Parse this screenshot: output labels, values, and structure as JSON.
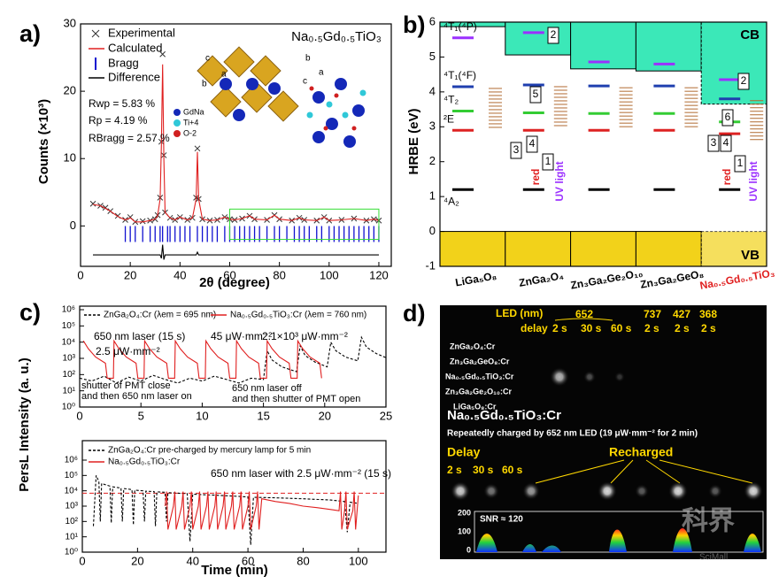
{
  "chart_data": [
    {
      "type": "line",
      "panel_label": "a)",
      "title": "Na₀.₅Gd₀.₅TiO₃",
      "x_label": "2θ (degree)",
      "y_label": "Counts (×10³)",
      "xlim": [
        0,
        125
      ],
      "ylim": [
        -6,
        30
      ],
      "xticks": [
        0,
        20,
        40,
        60,
        80,
        100,
        120
      ],
      "yticks": [
        0,
        10,
        20,
        30
      ],
      "legend": "upper left",
      "x": [
        5,
        8,
        10,
        12,
        15,
        18,
        20,
        22,
        25,
        28,
        30,
        31,
        32,
        32.5,
        33,
        33.5,
        34,
        36,
        38,
        40,
        43,
        45,
        46.5,
        47,
        47.5,
        49,
        52,
        55,
        58,
        60,
        62,
        65,
        68,
        70,
        75,
        78,
        80,
        85,
        88,
        90,
        95,
        98,
        100,
        105,
        110,
        115,
        118,
        120
      ],
      "series": [
        {
          "name": "Experimental",
          "color": "#333333",
          "mode": "markers",
          "values": [
            3.3,
            3.0,
            2.7,
            2.2,
            1.5,
            0.9,
            1.3,
            0.6,
            0.7,
            0.8,
            1.0,
            1.6,
            4.2,
            12.5,
            25.5,
            10.5,
            2,
            1.2,
            0.9,
            1.3,
            0.9,
            1.2,
            4.2,
            11.5,
            4,
            1,
            0.8,
            0.9,
            1.3,
            1.0,
            0.9,
            1.1,
            1.5,
            1.0,
            0.9,
            1.6,
            1.0,
            0.8,
            1.2,
            0.9,
            0.8,
            1.3,
            0.8,
            0.9,
            1.1,
            0.8,
            1.0,
            0.8
          ]
        },
        {
          "name": "Calculated",
          "color": "#e02020",
          "mode": "lines",
          "values": [
            3.2,
            3.0,
            2.6,
            2.2,
            1.4,
            0.9,
            1.2,
            0.6,
            0.6,
            0.8,
            1.0,
            1.5,
            4,
            12,
            24,
            10,
            2,
            1.2,
            0.9,
            1.3,
            0.9,
            1.2,
            4,
            11,
            4,
            1,
            0.8,
            0.9,
            1.3,
            1.0,
            0.9,
            1.1,
            1.5,
            1.0,
            0.9,
            1.6,
            1.0,
            0.8,
            1.2,
            0.9,
            0.8,
            1.3,
            0.8,
            0.9,
            1.1,
            0.8,
            1.0,
            0.8
          ]
        },
        {
          "name": "Bragg",
          "color": "#1010d0",
          "mode": "ticks",
          "x": [
            18,
            20,
            22,
            25,
            28,
            30,
            32,
            33,
            35,
            36,
            38,
            40,
            42,
            44,
            47,
            49,
            51,
            53,
            55,
            58,
            60,
            62,
            64,
            66,
            68,
            70,
            72,
            75,
            78,
            80,
            83,
            86,
            88,
            90,
            92,
            95,
            97,
            100,
            102,
            104,
            106,
            108,
            110,
            112,
            114,
            116,
            118,
            120
          ],
          "values": [
            -1.2,
            -1.2,
            -1.2,
            -1.2,
            -1.2,
            -1.2,
            -1.2,
            -1.2,
            -1.2,
            -1.2,
            -1.2,
            -1.2,
            -1.2,
            -1.2,
            -1.2,
            -1.2,
            -1.2,
            -1.2,
            -1.2,
            -1.2,
            -1.2,
            -1.2,
            -1.2,
            -1.2,
            -1.2,
            -1.2,
            -1.2,
            -1.2,
            -1.2,
            -1.2,
            -1.2,
            -1.2,
            -1.2,
            -1.2,
            -1.2,
            -1.2,
            -1.2,
            -1.2,
            -1.2,
            -1.2,
            -1.2,
            -1.2,
            -1.2,
            -1.2,
            -1.2,
            -1.2,
            -1.2,
            -1.2
          ]
        },
        {
          "name": "Difference",
          "color": "#000000",
          "mode": "lines",
          "values": [
            -4.3,
            -4.3,
            -4.3,
            -4.3,
            -4.3,
            -4.3,
            -4.3,
            -4.3,
            -4.3,
            -4.3,
            -4.3,
            -4.3,
            -4.3,
            -4.8,
            -2.8,
            -5,
            -4.3,
            -4.3,
            -4.3,
            -4.3,
            -4.3,
            -4.3,
            -4.3,
            -3.9,
            -4.3,
            -4.3,
            -4.3,
            -4.3,
            -4.3,
            -4.3,
            -4.3,
            -4.3,
            -4.3,
            -4.3,
            -4.3,
            -4.3,
            -4.3,
            -4.3,
            -4.3,
            -4.3,
            -4.3,
            -4.3,
            -4.3,
            -4.3,
            -4.3,
            -4.3,
            -4.3,
            -4.3
          ]
        }
      ],
      "annotations": [
        "Rwp = 5.83 %",
        "Rp = 4.19 %",
        "RBragg = 2.57 %",
        "GdNa",
        "Ti+4",
        "O-2",
        "c",
        "b",
        "a",
        "b",
        "c",
        "a"
      ]
    },
    {
      "type": "level",
      "panel_label": "b)",
      "y_label": "HRBE (eV)",
      "ylim": [
        -1,
        6
      ],
      "yticks": [
        -1,
        0,
        1,
        2,
        3,
        4,
        5,
        6
      ],
      "categories": [
        "LiGa₅O₈",
        "ZnGa₂O₄",
        "Zn₃Ga₂Ge₂O₁₀",
        "Zn₃Ga₂GeO₈",
        "Na₀.₅Gd₀.₅TiO₃"
      ],
      "category_colors": [
        "#000000",
        "#000000",
        "#000000",
        "#000000",
        "#e02020"
      ],
      "cb": {
        "name": "CB",
        "color": "#3be8b8",
        "values": [
          5.87,
          5.06,
          4.66,
          4.6,
          3.65
        ]
      },
      "vb": {
        "name": "VB",
        "color": "#f2d21a",
        "values": [
          0,
          0,
          0,
          0,
          0
        ]
      },
      "series": [
        {
          "name": "⁴T₁(⁴P)",
          "color": "#9b30ff",
          "values": [
            5.55,
            5.7,
            4.86,
            4.8,
            4.35
          ]
        },
        {
          "name": "⁴T₁(⁴F)",
          "color": "#1f3faf",
          "values": [
            4.15,
            4.2,
            4.17,
            4.17,
            3.8
          ]
        },
        {
          "name": "⁴T₂",
          "color": "#33cc33",
          "values": [
            3.45,
            3.4,
            3.38,
            3.38,
            3.14
          ]
        },
        {
          "name": "²E",
          "color": "#dd2222",
          "values": [
            2.9,
            2.9,
            2.9,
            2.9,
            2.8
          ]
        },
        {
          "name": "⁴A₂",
          "color": "#000000",
          "values": [
            1.2,
            1.2,
            1.2,
            1.2,
            1.2
          ]
        }
      ],
      "annotations": [
        "2",
        "5",
        "3",
        "4",
        "1",
        "red",
        "UV light",
        "2",
        "6",
        "3",
        "4",
        "1",
        "red",
        "UV light"
      ]
    },
    {
      "type": "line",
      "panel_label": "c)",
      "log_y": true,
      "xlim": [
        0,
        25
      ],
      "ylim": [
        1,
        1000000
      ],
      "xticks": [
        0,
        5,
        10,
        15,
        20,
        25
      ],
      "yticks": [
        {
          "value": 1,
          "label": "10⁰"
        },
        {
          "value": 10,
          "label": "10¹"
        },
        {
          "value": 100,
          "label": "10²"
        },
        {
          "value": 1000,
          "label": "10³"
        },
        {
          "value": 10000,
          "label": "10⁴"
        },
        {
          "value": 100000,
          "label": "10⁵"
        },
        {
          "value": 1000000,
          "label": "10⁶"
        }
      ],
      "legend": "top",
      "series": [
        {
          "name": "ZnGa₂O₄:Cr (λem = 695 nm)",
          "color": "#000000",
          "mode": "lines",
          "dash": true,
          "x": [
            0,
            1,
            2,
            3,
            4,
            5,
            6,
            7,
            8,
            9,
            10,
            11,
            12,
            13,
            14,
            15,
            15.3,
            15.7,
            16.5,
            17.7,
            18,
            18.4,
            19.2,
            20.2,
            20.5,
            20.9,
            21.7,
            22.7,
            23,
            23.4,
            24.2,
            25
          ],
          "values": [
            60,
            40,
            80,
            30,
            70,
            40,
            90,
            50,
            30,
            60,
            40,
            80,
            50,
            30,
            60,
            50,
            3000,
            800,
            300,
            150,
            6000,
            1500,
            600,
            300,
            10000,
            3000,
            1200,
            700,
            20000,
            5000,
            2000,
            1100
          ]
        },
        {
          "name": "Na₀.₅Gd₀.₅TiO₃:Cr (λem = 760 nm)",
          "color": "#e02020",
          "mode": "lines",
          "x": [
            0.3,
            0.7,
            1.3,
            2.1,
            2.25,
            2.75,
            2.8,
            3.2,
            3.8,
            4.6,
            4.75,
            5.25,
            5.3,
            5.7,
            6.3,
            7.1,
            7.25,
            7.75,
            7.8,
            8.2,
            8.8,
            9.6,
            9.75,
            10.25,
            10.3,
            10.7,
            11.3,
            12.1,
            12.25,
            12.75,
            12.8,
            13.2,
            13.8,
            14.6,
            14.75,
            15.25,
            15.3,
            15.7,
            16.3,
            17.1,
            17.25,
            17.75,
            17.8,
            18.2,
            18.8,
            19.6,
            19.75
          ],
          "values": [
            12000,
            4000,
            1200,
            500,
            60,
            60,
            12000,
            4000,
            1200,
            500,
            60,
            60,
            12000,
            4000,
            1200,
            500,
            60,
            60,
            12000,
            4000,
            1200,
            500,
            60,
            60,
            12000,
            4000,
            1200,
            500,
            60,
            60,
            12000,
            4000,
            1200,
            500,
            60,
            60,
            12000,
            4000,
            1200,
            500,
            60,
            60,
            12000,
            4000,
            1200,
            500,
            60
          ]
        }
      ],
      "annotations": [
        "650 nm laser (15 s)",
        "2.5 μW·mm⁻²",
        "45 μW·mm⁻²",
        "2.1×10³ μW·mm⁻²",
        "shutter of PMT close",
        "and then 650 nm laser on",
        "650 nm laser off",
        "and then shutter of PMT open"
      ]
    },
    {
      "type": "line",
      "log_y": true,
      "x_label": "Time (min)",
      "y_label": "PersL Intensity (a. u.)",
      "xlim": [
        0,
        110
      ],
      "ylim": [
        1,
        1000000
      ],
      "xticks": [
        0,
        20,
        40,
        60,
        80,
        100
      ],
      "yticks": [
        {
          "value": 1,
          "label": "10⁰"
        },
        {
          "value": 10,
          "label": "10¹"
        },
        {
          "value": 100,
          "label": "10²"
        },
        {
          "value": 1000,
          "label": "10³"
        },
        {
          "value": 10000,
          "label": "10⁴"
        },
        {
          "value": 100000,
          "label": "10⁵"
        },
        {
          "value": 1000000,
          "label": "10⁶"
        }
      ],
      "legend": "upper left",
      "hline": {
        "value": 7000,
        "color": "#e02020"
      },
      "series": [
        {
          "name": "ZnGa₂O₄:Cr pre-charged by mercury lamp for 5 min",
          "color": "#000000",
          "mode": "lines",
          "dash": true,
          "x": [
            4,
            5,
            6,
            6.5,
            7,
            10,
            10.5,
            11,
            14,
            14.5,
            15,
            18,
            18.5,
            19,
            22,
            22.5,
            23,
            26,
            26.5,
            27,
            30,
            30.5,
            31,
            35,
            38,
            39,
            40,
            45,
            50,
            55,
            60,
            61,
            62,
            70,
            80,
            90,
            95,
            96,
            97,
            100
          ],
          "values": [
            50,
            100000,
            40000,
            100,
            30000,
            20000,
            80,
            18000,
            15000,
            100,
            14000,
            12000,
            60,
            11000,
            10000,
            100,
            9500,
            9000,
            50,
            8500,
            8000,
            100,
            7500,
            7000,
            6500,
            5,
            6000,
            5500,
            5000,
            4500,
            4000,
            3,
            3800,
            3500,
            3000,
            2500,
            2000,
            20,
            1800,
            1500
          ]
        },
        {
          "name": "Na₀.₅Gd₀.₅TiO₃:Cr",
          "color": "#e02020",
          "mode": "lines",
          "x": [
            30,
            30.5,
            31,
            33,
            33.5,
            34,
            36,
            36.5,
            37,
            39,
            39.5,
            40,
            42,
            42.5,
            43,
            45,
            45.5,
            46,
            48,
            48.5,
            49,
            51,
            51.5,
            52,
            54,
            54.5,
            55,
            57,
            57.5,
            58,
            60,
            60.5,
            61,
            63,
            63.5,
            64,
            65,
            70,
            75,
            80,
            85,
            90,
            93,
            93.5,
            94,
            95,
            95.5,
            96,
            98,
            98.5,
            99,
            100
          ],
          "values": [
            1000,
            9000,
            30,
            1000,
            9000,
            30,
            1000,
            9000,
            30,
            1000,
            9000,
            30,
            1000,
            9000,
            30,
            1000,
            9000,
            30,
            1000,
            9000,
            30,
            1000,
            9000,
            30,
            1000,
            9000,
            30,
            1000,
            9000,
            30,
            1000,
            9000,
            30,
            1000,
            9000,
            30,
            3000,
            2000,
            1500,
            1000,
            800,
            600,
            500,
            9000,
            30,
            500,
            9000,
            30,
            500,
            9000,
            30,
            5000
          ]
        }
      ],
      "annotations": [
        "650 nm laser with 2.5 μW·mm⁻² (15 s)"
      ]
    }
  ],
  "photo": {
    "panel_label": "d)",
    "led_label": "LED  (nm)",
    "wavelengths": [
      "652",
      "737",
      "427",
      "368"
    ],
    "delay_label": "delay",
    "delays": [
      "2 s",
      "30 s",
      "60 s",
      "2 s",
      "2 s",
      "2 s"
    ],
    "rows": [
      "ZnGa₂O₄:Cr",
      "Zn₃Ga₂GeO₈:Cr",
      "Na₀.₅Gd₀.₅TiO₃:Cr",
      "Zn₃Ga₂Ge₂O₁₀:Cr",
      "LiGa₅O₈:Cr"
    ],
    "sample": "Na₀.₅Gd₀.₅TiO₃:Cr",
    "caption": "Repeatedly charged by 652 nm LED (19 μW·mm⁻² for 2 min)",
    "delay_title": "Delay",
    "delays2": [
      "2 s",
      "30 s",
      "60 s"
    ],
    "recharged": "Recharged",
    "snr": "SNR ≈ 120",
    "yticks": [
      0,
      100,
      200
    ],
    "watermark": [
      "科界",
      "SciMall"
    ]
  }
}
